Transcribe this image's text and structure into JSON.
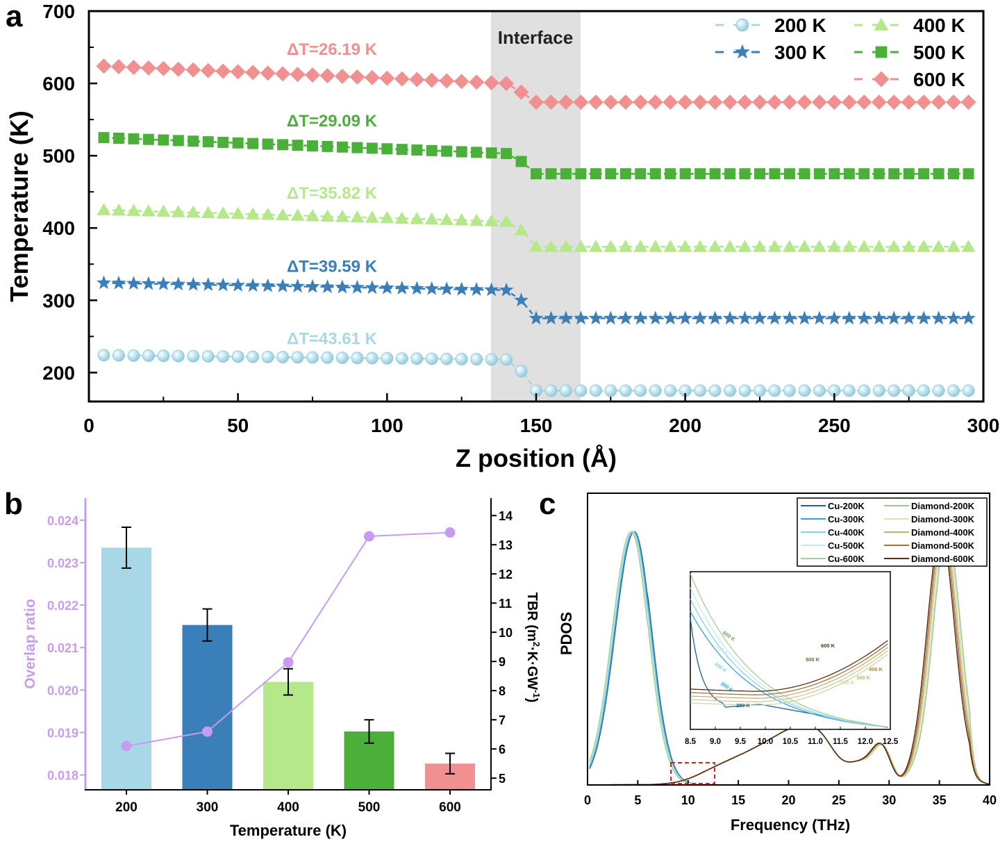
{
  "figure": {
    "panel_labels": {
      "a": "a",
      "b": "b",
      "c": "c"
    }
  },
  "chart_data": [
    {
      "panel": "a",
      "type": "line",
      "xlabel": "Z position (Å)",
      "ylabel": "Temperature (K)",
      "xlim": [
        0,
        300
      ],
      "ylim": [
        160,
        700
      ],
      "xticks": [
        0,
        50,
        100,
        150,
        200,
        250,
        300
      ],
      "yticks": [
        200,
        300,
        400,
        500,
        600,
        700
      ],
      "x_start": 5,
      "x_step": 5,
      "n_points": 59,
      "interface": {
        "label": "Interface",
        "x_range": [
          135,
          165
        ]
      },
      "legend_position": "top-right",
      "series": [
        {
          "name": "200 K",
          "marker": "sphere",
          "color": "#a8d8e8",
          "dT": "ΔT=43.61 K",
          "left_range": [
            224,
            218
          ],
          "drop": [
            218,
            202
          ],
          "right_value": 175
        },
        {
          "name": "300 K",
          "marker": "star",
          "color": "#3a7fb8",
          "dT": "ΔT=39.59 K",
          "left_range": [
            324,
            314
          ],
          "drop": [
            313,
            300
          ],
          "right_value": 275
        },
        {
          "name": "400 K",
          "marker": "triangle",
          "color": "#b5e88a",
          "dT": "ΔT=35.82 K",
          "left_range": [
            425,
            409
          ],
          "drop": [
            409,
            397
          ],
          "right_value": 374
        },
        {
          "name": "500 K",
          "marker": "square",
          "color": "#4bb03a",
          "dT": "ΔT=29.09 K",
          "left_range": [
            525,
            503
          ],
          "drop": [
            503,
            492
          ],
          "right_value": 475
        },
        {
          "name": "600 K",
          "marker": "diamond",
          "color": "#f09090",
          "dT": "ΔT=26.19 K",
          "left_range": [
            624,
            600
          ],
          "drop": [
            598,
            588
          ],
          "right_value": 574
        }
      ]
    },
    {
      "panel": "b",
      "type": "bar",
      "xlabel": "Temperature (K)",
      "ylabel_left": "Overlap ratio",
      "ylabel_right": {
        "base": "TBR (m",
        "sup1": "2",
        "mid": "·K·GW",
        "sup2": "-1",
        "end": ")"
      },
      "categories": [
        "200",
        "300",
        "400",
        "500",
        "600"
      ],
      "bar_colors": [
        "#a8d8e8",
        "#3a7fb8",
        "#b5e88a",
        "#4bb03a",
        "#f09090"
      ],
      "bar_series": {
        "name": "TBR",
        "axis": "right",
        "values": [
          12.9,
          10.25,
          8.3,
          6.6,
          5.5
        ],
        "errors": [
          0.7,
          0.55,
          0.45,
          0.4,
          0.35
        ]
      },
      "line_series": {
        "name": "Overlap ratio",
        "axis": "left",
        "color": "#c79cf0",
        "values": [
          0.01868,
          0.01902,
          0.02065,
          0.02362,
          0.02371
        ]
      },
      "ylim_left": [
        0.01765,
        0.02452
      ],
      "yticks_left": [
        "0.018",
        "0.019",
        "0.020",
        "0.021",
        "0.022",
        "0.023",
        "0.024"
      ],
      "ylim_right": [
        4.6,
        14.6
      ],
      "yticks_right": [
        "5",
        "6",
        "7",
        "8",
        "9",
        "10",
        "11",
        "12",
        "13",
        "14"
      ]
    },
    {
      "panel": "c",
      "type": "line",
      "xlabel": "Frequency (THz)",
      "ylabel": "PDOS",
      "xlim": [
        0,
        40
      ],
      "xticks": [
        "0",
        "5",
        "10",
        "15",
        "20",
        "25",
        "30",
        "35",
        "40"
      ],
      "legend_position": "top-right",
      "series": [
        {
          "name": "Cu-200K",
          "color": "#1a5fa6",
          "shift": 0.15
        },
        {
          "name": "Cu-300K",
          "color": "#3aa0d8",
          "shift": 0.08
        },
        {
          "name": "Cu-400K",
          "color": "#86cfe6",
          "shift": 0.0
        },
        {
          "name": "Cu-500K",
          "color": "#c2e8f2",
          "shift": -0.08
        },
        {
          "name": "Cu-600K",
          "color": "#a8d090",
          "shift": -0.16
        },
        {
          "name": "Diamond-200K",
          "color": "#9cc890",
          "shift": 0.35
        },
        {
          "name": "Diamond-300K",
          "color": "#d2e6b0",
          "shift": 0.2
        },
        {
          "name": "Diamond-400K",
          "color": "#c8ae78",
          "shift": 0.05
        },
        {
          "name": "Diamond-500K",
          "color": "#a8703a",
          "shift": -0.1
        },
        {
          "name": "Diamond-600K",
          "color": "#5a2e10",
          "shift": -0.25
        }
      ],
      "inset": {
        "xlim": [
          8.5,
          12.5
        ],
        "xticks": [
          "8.5",
          "9.0",
          "9.5",
          "10.0",
          "10.5",
          "11.0",
          "11.5",
          "12.0",
          "12.5"
        ],
        "cu_labels": [
          "200 K",
          "300 K",
          "400 K",
          "500 K",
          "600 K"
        ],
        "diamond_labels": [
          "200 K",
          "300 K",
          "400 K",
          "500 K",
          "600 K"
        ]
      }
    }
  ]
}
